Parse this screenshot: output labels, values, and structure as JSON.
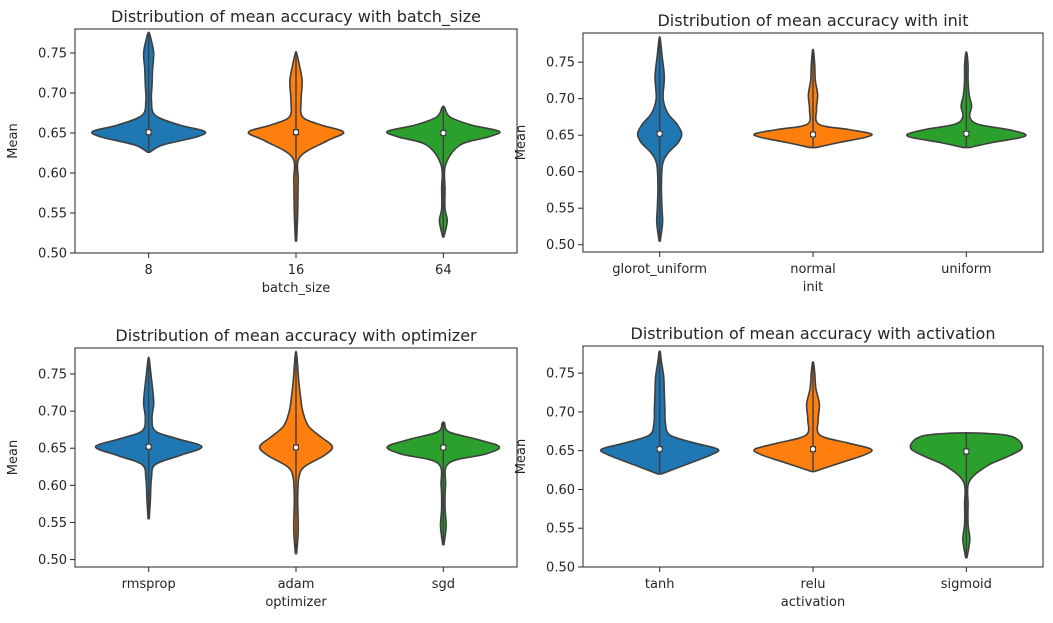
{
  "chart_data": [
    {
      "type": "violin",
      "title": "Distribution of mean accuracy with batch_size",
      "xlabel": "batch_size",
      "ylabel": "Mean",
      "ylim": [
        0.5,
        0.78
      ],
      "yticks": [
        "0.50",
        "0.55",
        "0.60",
        "0.65",
        "0.70",
        "0.75"
      ],
      "categories": [
        {
          "label": "8",
          "color": "#1f77b4",
          "median": 0.651,
          "profile": [
            [
              0.626,
              0.02
            ],
            [
              0.635,
              0.25
            ],
            [
              0.645,
              0.85
            ],
            [
              0.652,
              1.0
            ],
            [
              0.66,
              0.55
            ],
            [
              0.672,
              0.12
            ],
            [
              0.69,
              0.05
            ],
            [
              0.71,
              0.06
            ],
            [
              0.73,
              0.07
            ],
            [
              0.75,
              0.09
            ],
            [
              0.768,
              0.04
            ],
            [
              0.775,
              0.01
            ]
          ]
        },
        {
          "label": "16",
          "color": "#ff7f0e",
          "median": 0.651,
          "profile": [
            [
              0.515,
              0.01
            ],
            [
              0.55,
              0.03
            ],
            [
              0.59,
              0.04
            ],
            [
              0.62,
              0.07
            ],
            [
              0.64,
              0.55
            ],
            [
              0.651,
              0.85
            ],
            [
              0.66,
              0.45
            ],
            [
              0.67,
              0.12
            ],
            [
              0.69,
              0.09
            ],
            [
              0.715,
              0.11
            ],
            [
              0.735,
              0.06
            ],
            [
              0.75,
              0.01
            ]
          ]
        },
        {
          "label": "64",
          "color": "#2ca02c",
          "median": 0.65,
          "profile": [
            [
              0.52,
              0.01
            ],
            [
              0.54,
              0.07
            ],
            [
              0.555,
              0.03
            ],
            [
              0.58,
              0.03
            ],
            [
              0.61,
              0.04
            ],
            [
              0.635,
              0.3
            ],
            [
              0.645,
              0.8
            ],
            [
              0.652,
              1.0
            ],
            [
              0.66,
              0.5
            ],
            [
              0.67,
              0.12
            ],
            [
              0.682,
              0.02
            ]
          ]
        }
      ]
    },
    {
      "type": "violin",
      "title": "Distribution of mean accuracy with init",
      "xlabel": "init",
      "ylabel": "Mean",
      "ylim": [
        0.49,
        0.79
      ],
      "yticks": [
        "0.50",
        "0.55",
        "0.60",
        "0.65",
        "0.70",
        "0.75"
      ],
      "categories": [
        {
          "label": "glorot_uniform",
          "color": "#1f77b4",
          "median": 0.652,
          "profile": [
            [
              0.505,
              0.01
            ],
            [
              0.53,
              0.05
            ],
            [
              0.55,
              0.04
            ],
            [
              0.58,
              0.03
            ],
            [
              0.61,
              0.05
            ],
            [
              0.625,
              0.14
            ],
            [
              0.64,
              0.32
            ],
            [
              0.652,
              0.38
            ],
            [
              0.665,
              0.3
            ],
            [
              0.68,
              0.14
            ],
            [
              0.7,
              0.06
            ],
            [
              0.73,
              0.08
            ],
            [
              0.76,
              0.04
            ],
            [
              0.782,
              0.01
            ]
          ]
        },
        {
          "label": "normal",
          "color": "#ff7f0e",
          "median": 0.651,
          "profile": [
            [
              0.633,
              0.05
            ],
            [
              0.64,
              0.45
            ],
            [
              0.647,
              0.9
            ],
            [
              0.652,
              1.0
            ],
            [
              0.658,
              0.6
            ],
            [
              0.665,
              0.1
            ],
            [
              0.685,
              0.06
            ],
            [
              0.705,
              0.08
            ],
            [
              0.725,
              0.04
            ],
            [
              0.745,
              0.03
            ],
            [
              0.765,
              0.01
            ]
          ]
        },
        {
          "label": "uniform",
          "color": "#2ca02c",
          "median": 0.652,
          "profile": [
            [
              0.633,
              0.05
            ],
            [
              0.64,
              0.45
            ],
            [
              0.647,
              0.95
            ],
            [
              0.652,
              1.0
            ],
            [
              0.658,
              0.7
            ],
            [
              0.665,
              0.2
            ],
            [
              0.675,
              0.06
            ],
            [
              0.69,
              0.09
            ],
            [
              0.705,
              0.05
            ],
            [
              0.725,
              0.03
            ],
            [
              0.745,
              0.03
            ],
            [
              0.762,
              0.01
            ]
          ]
        }
      ]
    },
    {
      "type": "violin",
      "title": "Distribution of mean accuracy with optimizer",
      "xlabel": "optimizer",
      "ylabel": "Mean",
      "ylim": [
        0.49,
        0.785
      ],
      "yticks": [
        "0.50",
        "0.55",
        "0.60",
        "0.65",
        "0.70",
        "0.75"
      ],
      "categories": [
        {
          "label": "rmsprop",
          "color": "#1f77b4",
          "median": 0.652,
          "profile": [
            [
              0.555,
              0.01
            ],
            [
              0.58,
              0.03
            ],
            [
              0.61,
              0.05
            ],
            [
              0.628,
              0.12
            ],
            [
              0.64,
              0.55
            ],
            [
              0.652,
              0.95
            ],
            [
              0.663,
              0.5
            ],
            [
              0.673,
              0.12
            ],
            [
              0.69,
              0.06
            ],
            [
              0.71,
              0.09
            ],
            [
              0.73,
              0.07
            ],
            [
              0.75,
              0.04
            ],
            [
              0.77,
              0.01
            ]
          ]
        },
        {
          "label": "adam",
          "color": "#ff7f0e",
          "median": 0.651,
          "profile": [
            [
              0.508,
              0.01
            ],
            [
              0.54,
              0.04
            ],
            [
              0.58,
              0.03
            ],
            [
              0.61,
              0.05
            ],
            [
              0.625,
              0.15
            ],
            [
              0.64,
              0.5
            ],
            [
              0.652,
              0.65
            ],
            [
              0.665,
              0.45
            ],
            [
              0.68,
              0.22
            ],
            [
              0.7,
              0.12
            ],
            [
              0.72,
              0.08
            ],
            [
              0.74,
              0.05
            ],
            [
              0.76,
              0.03
            ],
            [
              0.778,
              0.01
            ]
          ]
        },
        {
          "label": "sgd",
          "color": "#2ca02c",
          "median": 0.651,
          "profile": [
            [
              0.52,
              0.01
            ],
            [
              0.545,
              0.05
            ],
            [
              0.57,
              0.03
            ],
            [
              0.6,
              0.04
            ],
            [
              0.63,
              0.1
            ],
            [
              0.642,
              0.75
            ],
            [
              0.652,
              1.0
            ],
            [
              0.662,
              0.6
            ],
            [
              0.672,
              0.1
            ],
            [
              0.684,
              0.02
            ]
          ]
        }
      ]
    },
    {
      "type": "violin",
      "title": "Distribution of mean accuracy with activation",
      "xlabel": "activation",
      "ylabel": "Mean",
      "ylim": [
        0.5,
        0.785
      ],
      "yticks": [
        "0.50",
        "0.55",
        "0.60",
        "0.65",
        "0.70",
        "0.75"
      ],
      "categories": [
        {
          "label": "tanh",
          "color": "#1f77b4",
          "median": 0.652,
          "profile": [
            [
              0.62,
              0.03
            ],
            [
              0.632,
              0.45
            ],
            [
              0.645,
              0.9
            ],
            [
              0.652,
              1.0
            ],
            [
              0.66,
              0.6
            ],
            [
              0.67,
              0.18
            ],
            [
              0.685,
              0.1
            ],
            [
              0.705,
              0.09
            ],
            [
              0.725,
              0.08
            ],
            [
              0.745,
              0.07
            ],
            [
              0.765,
              0.03
            ],
            [
              0.777,
              0.01
            ]
          ]
        },
        {
          "label": "relu",
          "color": "#ff7f0e",
          "median": 0.652,
          "profile": [
            [
              0.623,
              0.02
            ],
            [
              0.635,
              0.5
            ],
            [
              0.645,
              0.9
            ],
            [
              0.652,
              1.0
            ],
            [
              0.66,
              0.6
            ],
            [
              0.67,
              0.12
            ],
            [
              0.69,
              0.09
            ],
            [
              0.71,
              0.11
            ],
            [
              0.73,
              0.05
            ],
            [
              0.75,
              0.03
            ],
            [
              0.763,
              0.01
            ]
          ]
        },
        {
          "label": "sigmoid",
          "color": "#2ca02c",
          "median": 0.649,
          "profile": [
            [
              0.512,
              0.01
            ],
            [
              0.535,
              0.06
            ],
            [
              0.555,
              0.03
            ],
            [
              0.58,
              0.03
            ],
            [
              0.61,
              0.05
            ],
            [
              0.63,
              0.35
            ],
            [
              0.642,
              0.7
            ],
            [
              0.652,
              0.95
            ],
            [
              0.662,
              0.92
            ],
            [
              0.669,
              0.75
            ],
            [
              0.672,
              0.4
            ],
            [
              0.673,
              0.01
            ]
          ]
        }
      ]
    }
  ]
}
